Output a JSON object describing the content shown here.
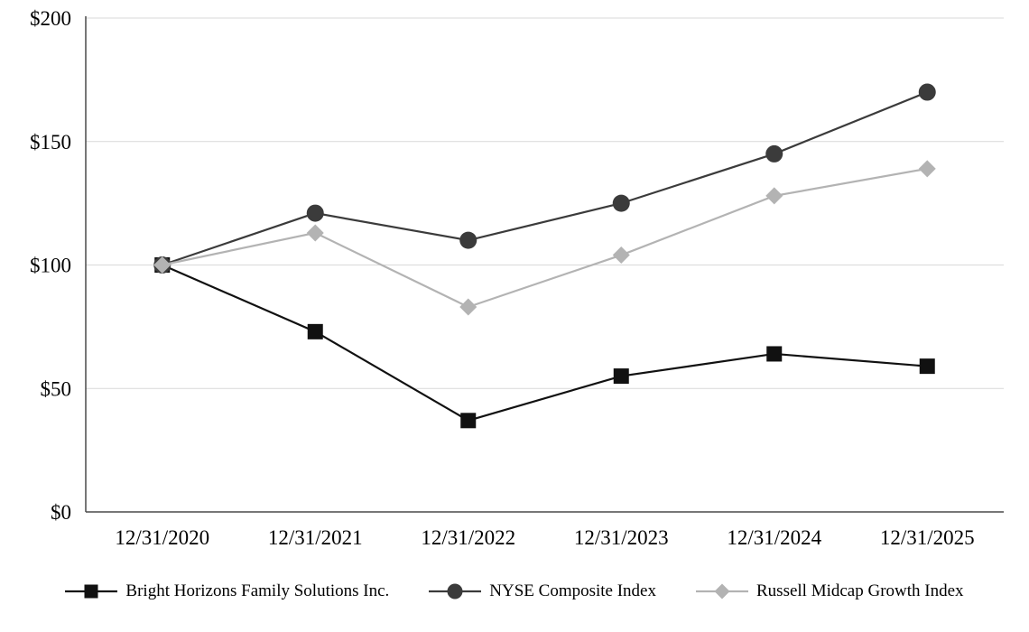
{
  "chart_data": {
    "type": "line",
    "title": "",
    "xlabel": "",
    "ylabel": "",
    "x": [
      "12/31/2020",
      "12/31/2021",
      "12/31/2022",
      "12/31/2023",
      "12/31/2024",
      "12/31/2025"
    ],
    "series": [
      {
        "name": "Bright Horizons Family Solutions Inc.",
        "marker": "square",
        "color": "#111111",
        "values": [
          100,
          73,
          37,
          55,
          64,
          59
        ]
      },
      {
        "name": "NYSE Composite Index",
        "marker": "circle",
        "color": "#3b3b3b",
        "values": [
          100,
          121,
          110,
          125,
          145,
          170
        ]
      },
      {
        "name": "Russell Midcap Growth Index",
        "marker": "diamond",
        "color": "#b3b3b3",
        "values": [
          100,
          113,
          83,
          104,
          128,
          139
        ]
      }
    ],
    "ylim": [
      0,
      200
    ],
    "yticks": [
      0,
      50,
      100,
      150,
      200
    ],
    "ytick_labels": [
      "$0",
      "$50",
      "$100",
      "$150",
      "$200"
    ],
    "grid": true,
    "legend_position": "bottom",
    "colors": {
      "axis": "#4a4a4a",
      "gridline": "#d9d9d9",
      "text": "#000000"
    }
  }
}
